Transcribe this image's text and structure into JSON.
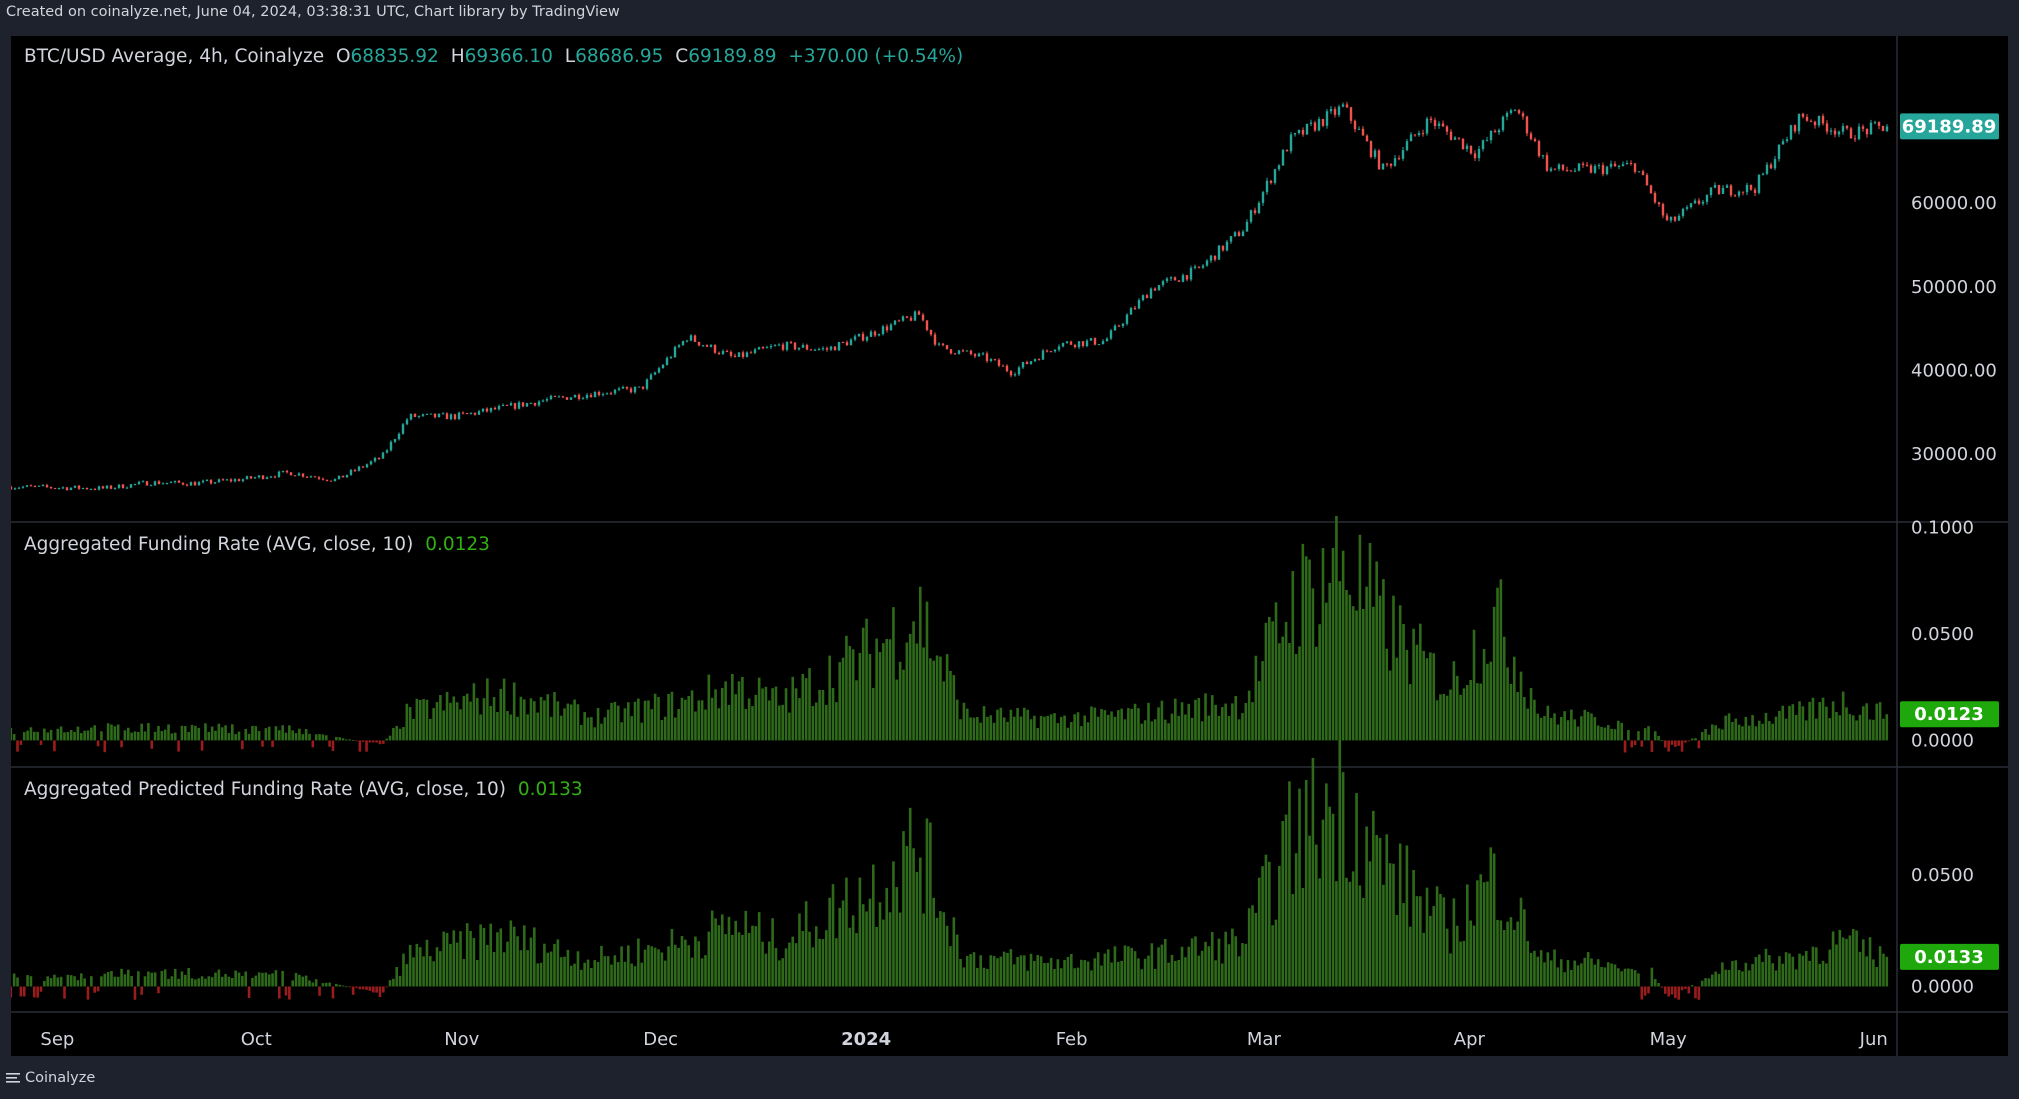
{
  "page": {
    "header": "Created on coinalyze.net, June 04, 2024, 03:38:31 UTC, Chart library by TradingView",
    "footer_brand": "Coinalyze"
  },
  "colors": {
    "up": "#26a69a",
    "down": "#ef5350",
    "bar_pos": "#2e6a19",
    "bar_neg": "#9b1c1c",
    "legend_green": "#32b012",
    "price_badge": "#26a69a",
    "funding_badge": "#1ea80c",
    "background": "#000000"
  },
  "legend": {
    "price": {
      "symbol": "BTC/USD Average, 4h, Coinalyze",
      "o_label": "O",
      "o": "68835.92",
      "h_label": "H",
      "h": "69366.10",
      "l_label": "L",
      "l": "68686.95",
      "c_label": "C",
      "c": "69189.89",
      "change": "+370.00 (+0.54%)"
    },
    "funding": {
      "label": "Aggregated Funding Rate (AVG, close, 10)",
      "value": "0.0123"
    },
    "predicted": {
      "label": "Aggregated Predicted Funding Rate (AVG, close, 10)",
      "value": "0.0133"
    }
  },
  "chart_data": [
    {
      "type": "candlestick",
      "name": "BTC/USD Average, 4h, Coinalyze",
      "x": [
        "2023-08-25",
        "2023-09-01",
        "2023-09-08",
        "2023-09-15",
        "2023-09-22",
        "2023-09-29",
        "2023-10-06",
        "2023-10-13",
        "2023-10-20",
        "2023-10-24",
        "2023-10-31",
        "2023-11-07",
        "2023-11-14",
        "2023-11-21",
        "2023-11-28",
        "2023-12-05",
        "2023-12-12",
        "2023-12-19",
        "2023-12-26",
        "2024-01-02",
        "2024-01-09",
        "2024-01-12",
        "2024-01-19",
        "2024-01-23",
        "2024-01-30",
        "2024-02-06",
        "2024-02-13",
        "2024-02-20",
        "2024-02-27",
        "2024-03-05",
        "2024-03-13",
        "2024-03-19",
        "2024-03-26",
        "2024-04-02",
        "2024-04-08",
        "2024-04-13",
        "2024-04-19",
        "2024-04-26",
        "2024-05-01",
        "2024-05-08",
        "2024-05-14",
        "2024-05-21",
        "2024-05-28",
        "2024-06-03"
      ],
      "y": [
        26100,
        26000,
        25900,
        26600,
        26500,
        27000,
        27800,
        26900,
        29700,
        34500,
        34500,
        35500,
        36500,
        37300,
        37800,
        44000,
        41500,
        43000,
        42500,
        44500,
        46700,
        42800,
        41500,
        39800,
        43200,
        43500,
        49800,
        52000,
        57000,
        67500,
        71500,
        64000,
        70000,
        66000,
        71500,
        64000,
        64000,
        64500,
        57500,
        61500,
        61800,
        70500,
        68300,
        69190
      ],
      "ylabel": "",
      "y_ticks": [
        "30000.00",
        "40000.00",
        "50000.00",
        "60000.00"
      ],
      "last_price": "69189.89",
      "ylim": [
        22000,
        80000
      ]
    },
    {
      "type": "bar",
      "name": "Aggregated Funding Rate (AVG, close, 10)",
      "x": [
        "2023-08-25",
        "2023-09-15",
        "2023-10-06",
        "2023-10-20",
        "2023-10-24",
        "2023-11-07",
        "2023-11-21",
        "2023-12-05",
        "2023-12-12",
        "2023-12-19",
        "2023-12-26",
        "2024-01-02",
        "2024-01-09",
        "2024-01-16",
        "2024-01-30",
        "2024-02-13",
        "2024-02-27",
        "2024-03-05",
        "2024-03-13",
        "2024-03-19",
        "2024-03-29",
        "2024-04-05",
        "2024-04-12",
        "2024-04-19",
        "2024-04-29",
        "2024-05-01",
        "2024-05-10",
        "2024-05-20",
        "2024-05-27",
        "2024-06-03"
      ],
      "y": [
        0.005,
        0.006,
        0.005,
        -0.002,
        0.013,
        0.022,
        0.011,
        0.018,
        0.026,
        0.018,
        0.03,
        0.042,
        0.06,
        0.012,
        0.01,
        0.013,
        0.018,
        0.063,
        0.085,
        0.055,
        0.025,
        0.058,
        0.012,
        0.01,
        0.006,
        -0.005,
        0.009,
        0.012,
        0.018,
        0.0123
      ],
      "y_ticks": [
        "0.0000",
        "0.0500",
        "0.1000"
      ],
      "last_value": "0.0123",
      "ylim": [
        -0.012,
        0.102
      ]
    },
    {
      "type": "bar",
      "name": "Aggregated Predicted Funding Rate (AVG, close, 10)",
      "x": [
        "2023-08-25",
        "2023-09-15",
        "2023-10-06",
        "2023-10-20",
        "2023-10-24",
        "2023-11-07",
        "2023-11-21",
        "2023-12-05",
        "2023-12-12",
        "2023-12-19",
        "2023-12-26",
        "2024-01-02",
        "2024-01-09",
        "2024-01-16",
        "2024-01-30",
        "2024-02-13",
        "2024-02-27",
        "2024-03-05",
        "2024-03-13",
        "2024-03-19",
        "2024-03-29",
        "2024-04-05",
        "2024-04-12",
        "2024-04-19",
        "2024-04-29",
        "2024-05-01",
        "2024-05-10",
        "2024-05-20",
        "2024-05-27",
        "2024-06-03"
      ],
      "y": [
        0.004,
        0.006,
        0.005,
        -0.003,
        0.014,
        0.023,
        0.012,
        0.02,
        0.028,
        0.02,
        0.032,
        0.044,
        0.063,
        0.013,
        0.011,
        0.014,
        0.02,
        0.065,
        0.085,
        0.055,
        0.026,
        0.05,
        0.012,
        0.011,
        0.006,
        -0.006,
        0.01,
        0.013,
        0.02,
        0.0133
      ],
      "y_ticks": [
        "0.0000",
        "0.0500"
      ],
      "last_value": "0.0133",
      "ylim": [
        -0.011,
        0.098
      ]
    }
  ],
  "x_axis": {
    "labels": [
      {
        "text": "Sep",
        "date": "2023-09-01",
        "bold": false
      },
      {
        "text": "Oct",
        "date": "2023-10-01",
        "bold": false
      },
      {
        "text": "Nov",
        "date": "2023-11-01",
        "bold": false
      },
      {
        "text": "Dec",
        "date": "2023-12-01",
        "bold": false
      },
      {
        "text": "2024",
        "date": "2024-01-01",
        "bold": true
      },
      {
        "text": "Feb",
        "date": "2024-02-01",
        "bold": false
      },
      {
        "text": "Mar",
        "date": "2024-03-01",
        "bold": false
      },
      {
        "text": "Apr",
        "date": "2024-04-01",
        "bold": false
      },
      {
        "text": "May",
        "date": "2024-05-01",
        "bold": false
      },
      {
        "text": "Jun",
        "date": "2024-06-01",
        "bold": false
      }
    ]
  }
}
